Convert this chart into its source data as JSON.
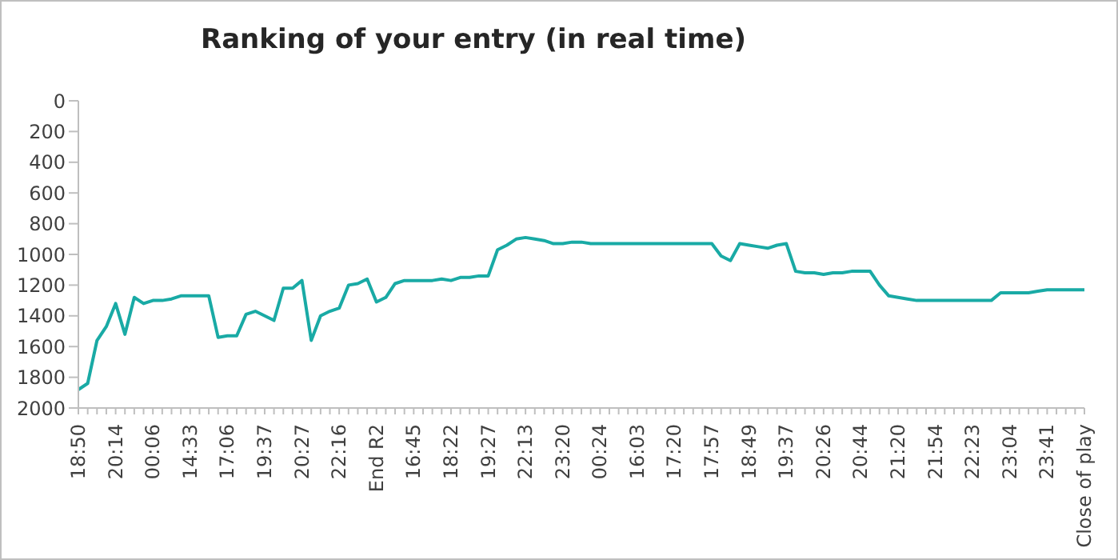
{
  "chart_data": {
    "type": "line",
    "title": "Ranking of your entry (in real time)",
    "categories": [
      "18:50",
      null,
      null,
      null,
      "20:14",
      null,
      null,
      null,
      "00:06",
      null,
      null,
      null,
      "14:33",
      null,
      null,
      null,
      "17:06",
      null,
      null,
      null,
      "19:37",
      null,
      null,
      null,
      "20:27",
      null,
      null,
      null,
      "22:16",
      null,
      null,
      null,
      "End R2",
      null,
      null,
      null,
      "16:45",
      null,
      null,
      null,
      "18:22",
      null,
      null,
      null,
      "19:27",
      null,
      null,
      null,
      "22:13",
      null,
      null,
      null,
      "23:20",
      null,
      null,
      null,
      "00:24",
      null,
      null,
      null,
      "16:03",
      null,
      null,
      null,
      "17:20",
      null,
      null,
      null,
      "17:57",
      null,
      null,
      null,
      "18:49",
      null,
      null,
      null,
      "19:37",
      null,
      null,
      null,
      "20:26",
      null,
      null,
      null,
      "20:44",
      null,
      null,
      null,
      "21:20",
      null,
      null,
      null,
      "21:54",
      null,
      null,
      null,
      "22:23",
      null,
      null,
      null,
      "23:04",
      null,
      null,
      null,
      "23:41",
      null,
      null,
      null,
      "Close of play"
    ],
    "series": [
      {
        "color": "#19aaa5",
        "values": [
          1880,
          1840,
          1560,
          1470,
          1320,
          1520,
          1280,
          1320,
          1300,
          1300,
          1290,
          1270,
          1270,
          1270,
          1270,
          1540,
          1530,
          1530,
          1390,
          1370,
          1400,
          1430,
          1220,
          1220,
          1170,
          1560,
          1400,
          1370,
          1350,
          1200,
          1190,
          1160,
          1310,
          1280,
          1190,
          1170,
          1170,
          1170,
          1170,
          1160,
          1170,
          1150,
          1150,
          1140,
          1140,
          970,
          940,
          900,
          890,
          900,
          910,
          930,
          930,
          920,
          920,
          930,
          930,
          930,
          930,
          930,
          930,
          930,
          930,
          930,
          930,
          930,
          930,
          930,
          930,
          1010,
          1040,
          930,
          940,
          950,
          960,
          940,
          930,
          1110,
          1120,
          1120,
          1130,
          1120,
          1120,
          1110,
          1110,
          1110,
          1200,
          1270,
          1280,
          1290,
          1300,
          1300,
          1300,
          1300,
          1300,
          1300,
          1300,
          1300,
          1300,
          1250,
          1250,
          1250,
          1250,
          1240,
          1230,
          1230,
          1230,
          1230,
          1230
        ]
      }
    ],
    "ylim": [
      2000,
      0
    ],
    "yticks": [
      0,
      200,
      400,
      600,
      800,
      1000,
      1200,
      1400,
      1600,
      1800,
      2000
    ],
    "marker": "none",
    "line_style": "solid"
  }
}
